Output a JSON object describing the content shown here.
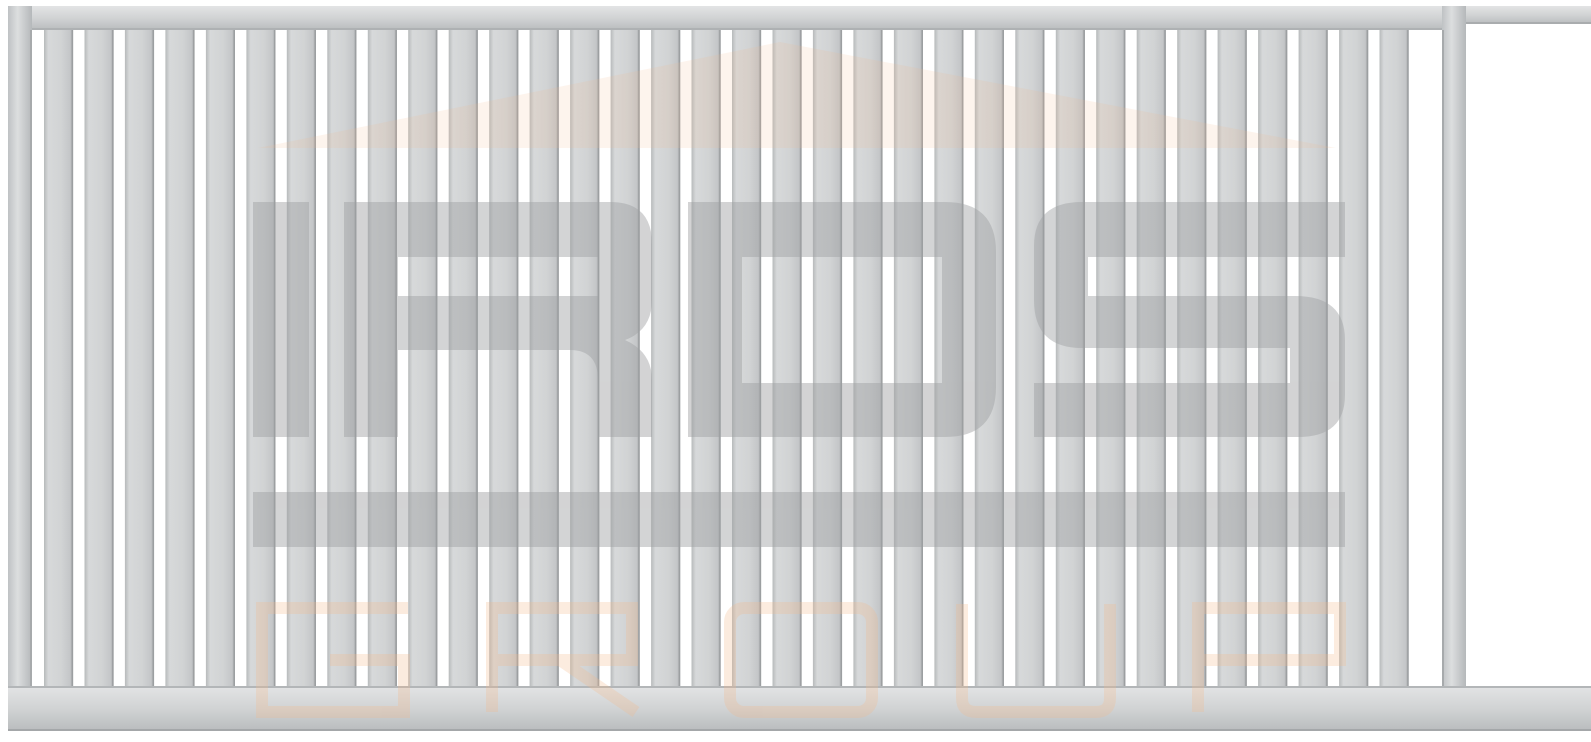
{
  "image": {
    "subject": "sliding-gate-with-vertical-slats",
    "slat_count": 34
  },
  "watermark": {
    "brand": "IRDS",
    "tagline": "GROUP"
  },
  "colors": {
    "frame": "#cfd1d2",
    "frame_edge": "#a6a9ab",
    "slat": "#d0d2d3",
    "slat_edge": "#9c9fa1",
    "gap": "#ffffff",
    "watermark_gray": "#a3a5a7",
    "watermark_orange": "#f3b98c"
  }
}
